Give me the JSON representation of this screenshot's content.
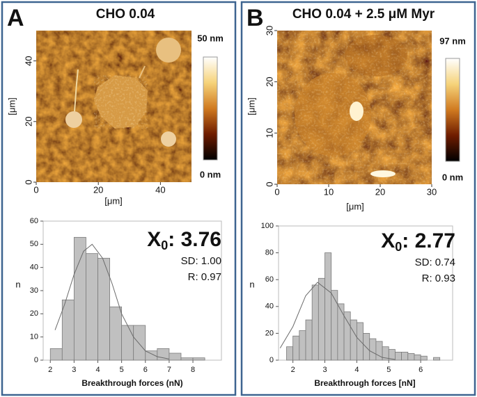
{
  "chart_data": [
    {
      "type": "image",
      "panel": "A",
      "title": "CHO 0.04",
      "xlabel": "[μm]",
      "ylabel": "[μm]",
      "xlim": [
        0,
        50
      ],
      "xticks": [
        0,
        20,
        40
      ],
      "ylim": [
        0,
        50
      ],
      "yticks": [
        0,
        20,
        40
      ],
      "colorbar_labels": [
        "50 nm",
        "0 nm"
      ]
    },
    {
      "type": "histogram",
      "xlabel": "Breakthrough forces (nN)",
      "ylabel": "n",
      "bins": [
        2,
        2.5,
        3,
        3.5,
        4,
        4.5,
        5,
        5.5,
        6,
        6.5,
        7,
        7.5,
        8,
        8.5
      ],
      "values": [
        5,
        26,
        53,
        46,
        44,
        23,
        15,
        15,
        4,
        5,
        3,
        1,
        1
      ],
      "color": "#c0c0c0",
      "xlim": [
        1.7,
        9.2
      ],
      "xticks": [
        2,
        3,
        4,
        5,
        6,
        7,
        8
      ],
      "ylim": [
        0,
        60
      ],
      "yticks": [
        0,
        10,
        20,
        30,
        40,
        50,
        60
      ],
      "fit": {
        "x": [
          2.2,
          2.6,
          3.0,
          3.4,
          3.76,
          4.2,
          4.6,
          5.0,
          5.5,
          6.0,
          6.5,
          7.0
        ],
        "y": [
          13,
          24,
          37,
          47,
          50,
          44,
          33,
          20,
          10,
          4,
          1.5,
          0.5
        ]
      },
      "stat_symbol": "X",
      "stat_subscript": "0",
      "stat_value": ": 3.76",
      "stats": [
        "SD: 1.00",
        "R: 0.97"
      ]
    },
    {
      "type": "image",
      "panel": "B",
      "title": "CHO 0.04 + 2.5 μM Myr",
      "xlabel": "[μm]",
      "ylabel": "[μm]",
      "xlim": [
        0,
        30
      ],
      "xticks": [
        0,
        10,
        20,
        30
      ],
      "ylim": [
        0,
        30
      ],
      "yticks": [
        0,
        10,
        20,
        30
      ],
      "colorbar_labels": [
        "97 nm",
        "0 nm"
      ]
    },
    {
      "type": "histogram",
      "xlabel": "Breakthrough forces [nN]",
      "ylabel": "n",
      "bins": [
        1.8,
        2.0,
        2.2,
        2.4,
        2.6,
        2.8,
        3.0,
        3.2,
        3.4,
        3.6,
        3.8,
        4.0,
        4.2,
        4.4,
        4.6,
        4.8,
        5.0,
        5.2,
        5.4,
        5.6,
        5.8,
        6.0,
        6.2,
        6.4,
        6.6
      ],
      "values": [
        10,
        18,
        22,
        30,
        56,
        61,
        80,
        52,
        42,
        36,
        30,
        28,
        20,
        16,
        14,
        10,
        8,
        6,
        6,
        5,
        4,
        3,
        0,
        2
      ],
      "color": "#c0c0c0",
      "xlim": [
        1.55,
        7.0
      ],
      "xticks": [
        2,
        3,
        4,
        5,
        6
      ],
      "ylim": [
        0,
        100
      ],
      "yticks": [
        0,
        20,
        40,
        60,
        80,
        100
      ],
      "fit": {
        "x": [
          1.6,
          2.0,
          2.4,
          2.77,
          3.2,
          3.6,
          4.0,
          4.4,
          4.8,
          5.2
        ],
        "y": [
          9,
          25,
          48,
          58,
          50,
          33,
          17,
          7,
          2,
          0.5
        ]
      },
      "stat_symbol": "X",
      "stat_subscript": "0",
      "stat_value": ": 2.77",
      "stats": [
        "SD: 0.74",
        "R: 0.93"
      ]
    }
  ]
}
